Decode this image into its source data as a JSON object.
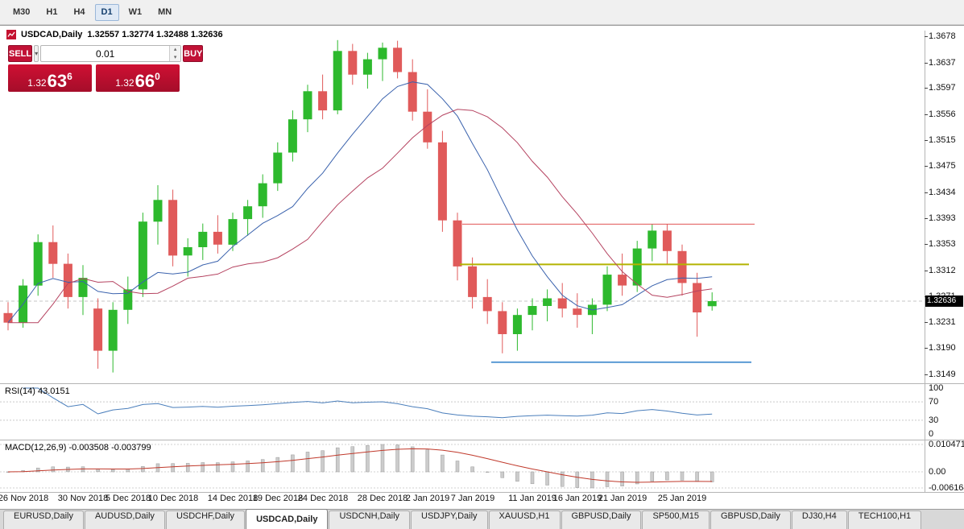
{
  "toolbar": {
    "timeframes": [
      {
        "label": "M30",
        "active": false
      },
      {
        "label": "H1",
        "active": false
      },
      {
        "label": "H4",
        "active": false
      },
      {
        "label": "D1",
        "active": true
      },
      {
        "label": "W1",
        "active": false
      },
      {
        "label": "MN",
        "active": false
      }
    ]
  },
  "chart_title": {
    "symbol": "USDCAD,Daily",
    "quotes": "1.32557 1.32774 1.32488 1.32636"
  },
  "trade_panel": {
    "sell_label": "SELL",
    "buy_label": "BUY",
    "volume": "0.01",
    "bid": {
      "prefix": "1.32",
      "big": "63",
      "sup": "6"
    },
    "ask": {
      "prefix": "1.32",
      "big": "66",
      "sup": "0"
    }
  },
  "chart_data": {
    "type": "candlestick",
    "symbol": "USDCAD",
    "period": "Daily",
    "colors": {
      "up": "#2db92d",
      "down": "#e05a5a",
      "ma_fast": "#3a62ad",
      "ma_slow": "#b54360",
      "rsi": "#4a7ebb",
      "macd_hist": "#cccccc",
      "macd_hist_edge": "#9b9b9b",
      "macd_signal": "#c0392b"
    },
    "y_axis": {
      "max": 1.3678,
      "min": 1.3149,
      "labels": [
        "1.3678",
        "1.3637",
        "1.3597",
        "1.3556",
        "1.3515",
        "1.3475",
        "1.3434",
        "1.3393",
        "1.3353",
        "1.3312",
        "1.3271",
        "1.3231",
        "1.3190",
        "1.3149"
      ]
    },
    "current_price": 1.32636,
    "current_price_label": "1.32636",
    "candles": [
      {
        "d": "23 Nov 2018",
        "o": 1.3245,
        "h": 1.3262,
        "l": 1.3218,
        "c": 1.323
      },
      {
        "d": "26 Nov 2018",
        "o": 1.323,
        "h": 1.3298,
        "l": 1.3222,
        "c": 1.3288
      },
      {
        "d": "27 Nov 2018",
        "o": 1.3288,
        "h": 1.3368,
        "l": 1.3272,
        "c": 1.3356
      },
      {
        "d": "28 Nov 2018",
        "o": 1.3356,
        "h": 1.3382,
        "l": 1.33,
        "c": 1.3322
      },
      {
        "d": "29 Nov 2018",
        "o": 1.3322,
        "h": 1.3338,
        "l": 1.3252,
        "c": 1.327
      },
      {
        "d": "30 Nov 2018",
        "o": 1.327,
        "h": 1.332,
        "l": 1.3242,
        "c": 1.33
      },
      {
        "d": "3 Dec 2018",
        "o": 1.3252,
        "h": 1.3268,
        "l": 1.3158,
        "c": 1.3186
      },
      {
        "d": "4 Dec 2018",
        "o": 1.3186,
        "h": 1.3262,
        "l": 1.3152,
        "c": 1.325
      },
      {
        "d": "5 Dec 2018",
        "o": 1.325,
        "h": 1.3302,
        "l": 1.3228,
        "c": 1.3282
      },
      {
        "d": "6 Dec 2018",
        "o": 1.3282,
        "h": 1.3402,
        "l": 1.327,
        "c": 1.3388
      },
      {
        "d": "7 Dec 2018",
        "o": 1.3388,
        "h": 1.3445,
        "l": 1.3352,
        "c": 1.3422
      },
      {
        "d": "10 Dec 2018",
        "o": 1.3422,
        "h": 1.3438,
        "l": 1.3318,
        "c": 1.3335
      },
      {
        "d": "11 Dec 2018",
        "o": 1.3335,
        "h": 1.3362,
        "l": 1.3302,
        "c": 1.3348
      },
      {
        "d": "12 Dec 2018",
        "o": 1.3348,
        "h": 1.3385,
        "l": 1.3328,
        "c": 1.3372
      },
      {
        "d": "13 Dec 2018",
        "o": 1.3372,
        "h": 1.3398,
        "l": 1.3338,
        "c": 1.3352
      },
      {
        "d": "14 Dec 2018",
        "o": 1.3352,
        "h": 1.3402,
        "l": 1.3342,
        "c": 1.3392
      },
      {
        "d": "17 Dec 2018",
        "o": 1.3392,
        "h": 1.3422,
        "l": 1.3366,
        "c": 1.3412
      },
      {
        "d": "18 Dec 2018",
        "o": 1.3412,
        "h": 1.3462,
        "l": 1.3394,
        "c": 1.3448
      },
      {
        "d": "19 Dec 2018",
        "o": 1.3448,
        "h": 1.3512,
        "l": 1.3436,
        "c": 1.3496
      },
      {
        "d": "20 Dec 2018",
        "o": 1.3496,
        "h": 1.3562,
        "l": 1.3482,
        "c": 1.3548
      },
      {
        "d": "21 Dec 2018",
        "o": 1.3548,
        "h": 1.3602,
        "l": 1.3528,
        "c": 1.3592
      },
      {
        "d": "24 Dec 2018",
        "o": 1.3592,
        "h": 1.3618,
        "l": 1.3548,
        "c": 1.3562
      },
      {
        "d": "25 Dec 2018",
        "o": 1.3562,
        "h": 1.3672,
        "l": 1.3556,
        "c": 1.3655
      },
      {
        "d": "26 Dec 2018",
        "o": 1.3655,
        "h": 1.3666,
        "l": 1.3602,
        "c": 1.3618
      },
      {
        "d": "27 Dec 2018",
        "o": 1.3618,
        "h": 1.3652,
        "l": 1.3596,
        "c": 1.3642
      },
      {
        "d": "28 Dec 2018",
        "o": 1.3642,
        "h": 1.3668,
        "l": 1.3608,
        "c": 1.366
      },
      {
        "d": "31 Dec 2018",
        "o": 1.366,
        "h": 1.3671,
        "l": 1.3612,
        "c": 1.3622
      },
      {
        "d": "1 Jan 2019",
        "o": 1.3622,
        "h": 1.3642,
        "l": 1.3546,
        "c": 1.356
      },
      {
        "d": "2 Jan 2019",
        "o": 1.356,
        "h": 1.3595,
        "l": 1.3502,
        "c": 1.3512
      },
      {
        "d": "3 Jan 2019",
        "o": 1.3512,
        "h": 1.353,
        "l": 1.3372,
        "c": 1.339
      },
      {
        "d": "4 Jan 2019",
        "o": 1.339,
        "h": 1.3402,
        "l": 1.3296,
        "c": 1.3318
      },
      {
        "d": "7 Jan 2019",
        "o": 1.3318,
        "h": 1.3332,
        "l": 1.3252,
        "c": 1.327
      },
      {
        "d": "8 Jan 2019",
        "o": 1.327,
        "h": 1.3298,
        "l": 1.3228,
        "c": 1.3248
      },
      {
        "d": "9 Jan 2019",
        "o": 1.3248,
        "h": 1.3262,
        "l": 1.3182,
        "c": 1.3212
      },
      {
        "d": "10 Jan 2019",
        "o": 1.3212,
        "h": 1.3252,
        "l": 1.3186,
        "c": 1.3242
      },
      {
        "d": "11 Jan 2019",
        "o": 1.3242,
        "h": 1.3268,
        "l": 1.3218,
        "c": 1.3256
      },
      {
        "d": "14 Jan 2019",
        "o": 1.3256,
        "h": 1.3282,
        "l": 1.3232,
        "c": 1.3268
      },
      {
        "d": "15 Jan 2019",
        "o": 1.3268,
        "h": 1.3292,
        "l": 1.3238,
        "c": 1.3252
      },
      {
        "d": "16 Jan 2019",
        "o": 1.3252,
        "h": 1.3276,
        "l": 1.3222,
        "c": 1.3242
      },
      {
        "d": "17 Jan 2019",
        "o": 1.3242,
        "h": 1.3268,
        "l": 1.3212,
        "c": 1.3258
      },
      {
        "d": "18 Jan 2019",
        "o": 1.3258,
        "h": 1.3318,
        "l": 1.3248,
        "c": 1.3305
      },
      {
        "d": "21 Jan 2019",
        "o": 1.3305,
        "h": 1.3338,
        "l": 1.3272,
        "c": 1.3288
      },
      {
        "d": "22 Jan 2019",
        "o": 1.3288,
        "h": 1.3358,
        "l": 1.3278,
        "c": 1.3346
      },
      {
        "d": "23 Jan 2019",
        "o": 1.3346,
        "h": 1.3384,
        "l": 1.3326,
        "c": 1.3374
      },
      {
        "d": "24 Jan 2019",
        "o": 1.3374,
        "h": 1.3384,
        "l": 1.3322,
        "c": 1.3342
      },
      {
        "d": "25 Jan 2019",
        "o": 1.3342,
        "h": 1.3352,
        "l": 1.3272,
        "c": 1.3292
      },
      {
        "d": "28 Jan 2019",
        "o": 1.3292,
        "h": 1.3308,
        "l": 1.3208,
        "c": 1.3246
      },
      {
        "d": "29 Jan 2019",
        "o": 1.32557,
        "h": 1.32774,
        "l": 1.32488,
        "c": 1.32636
      }
    ],
    "x_labels": [
      {
        "text": "26 Nov 2018",
        "i": 1
      },
      {
        "text": "30 Nov 2018",
        "i": 5
      },
      {
        "text": "5 Dec 2018",
        "i": 8
      },
      {
        "text": "10 Dec 2018",
        "i": 11
      },
      {
        "text": "14 Dec 2018",
        "i": 15
      },
      {
        "text": "19 Dec 2018",
        "i": 18
      },
      {
        "text": "24 Dec 2018",
        "i": 21
      },
      {
        "text": "28 Dec 2018",
        "i": 25
      },
      {
        "text": "2 Jan 2019",
        "i": 28
      },
      {
        "text": "7 Jan 2019",
        "i": 31
      },
      {
        "text": "11 Jan 2019",
        "i": 35
      },
      {
        "text": "16 Jan 2019",
        "i": 38
      },
      {
        "text": "21 Jan 2019",
        "i": 41
      },
      {
        "text": "25 Jan 2019",
        "i": 45
      }
    ],
    "hlines": [
      {
        "name": "resistance",
        "price": 1.3384,
        "color": "#e05555",
        "width": 1,
        "x1": 0.5,
        "x2": 0.816
      },
      {
        "name": "mid-level",
        "price": 1.3321,
        "color": "#b3b300",
        "width": 2,
        "x1": 0.497,
        "x2": 0.81
      },
      {
        "name": "support",
        "price": 1.3168,
        "color": "#5b9bd5",
        "width": 2,
        "x1": 0.531,
        "x2": 0.813
      }
    ],
    "ma": {
      "fast_period": 9,
      "slow_period": 13,
      "slow_shift": 2
    },
    "rsi": {
      "label": "RSI(14) 43.0151",
      "period": 14,
      "scale_labels": [
        "100",
        "70",
        "30",
        "0"
      ],
      "scale_values": [
        100,
        70,
        30,
        0
      ],
      "dashed_levels": [
        70,
        30
      ]
    },
    "macd": {
      "label": "MACD(12,26,9) -0.003508 -0.003799",
      "fast": 12,
      "slow": 26,
      "signal": 9,
      "scale_labels": [
        "0.010471",
        "0.00",
        "-0.006164"
      ],
      "scale_values": [
        0.010471,
        0,
        -0.006164
      ]
    }
  },
  "tabs": {
    "items": [
      {
        "label": "EURUSD,Daily",
        "active": false
      },
      {
        "label": "AUDUSD,Daily",
        "active": false
      },
      {
        "label": "USDCHF,Daily",
        "active": false
      },
      {
        "label": "USDCAD,Daily",
        "active": true
      },
      {
        "label": "USDCNH,Daily",
        "active": false
      },
      {
        "label": "USDJPY,Daily",
        "active": false
      },
      {
        "label": "XAUUSD,H1",
        "active": false
      },
      {
        "label": "GBPUSD,Daily",
        "active": false
      },
      {
        "label": "SP500,M15",
        "active": false
      },
      {
        "label": "GBPUSD,Daily",
        "active": false
      },
      {
        "label": "DJ30,H4",
        "active": false
      },
      {
        "label": "TECH100,H1",
        "active": false
      }
    ]
  }
}
